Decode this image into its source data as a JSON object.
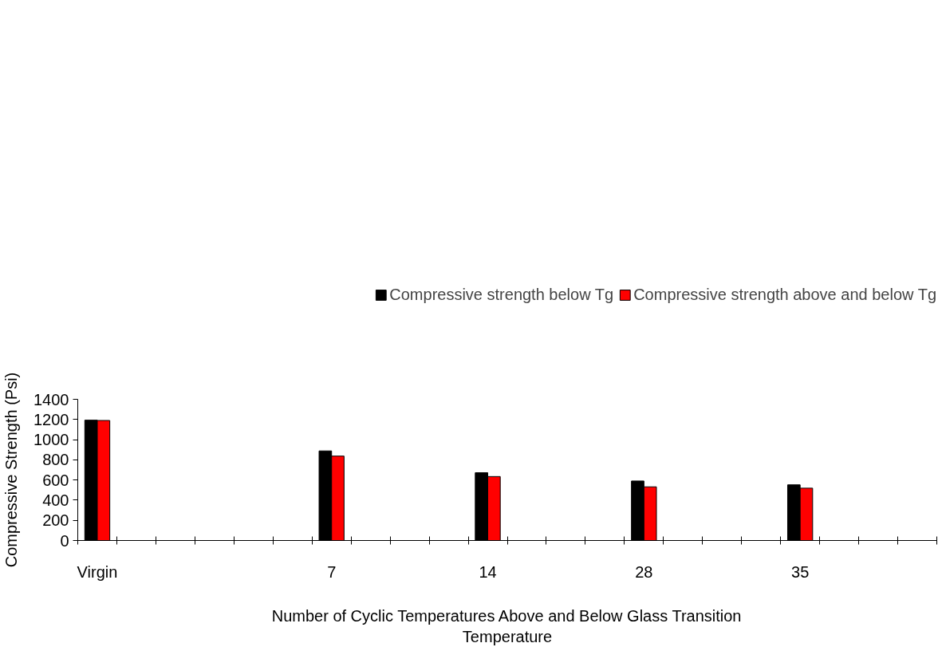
{
  "chart_data": {
    "type": "bar",
    "xlabel": "Number of Cyclic Temperatures Above and Below Glass Transition Temperature",
    "ylabel": "Compressive Strength (Psi)",
    "categories": [
      "Virgin",
      null,
      null,
      null,
      null,
      null,
      "7",
      null,
      null,
      null,
      "14",
      null,
      null,
      null,
      "28",
      null,
      null,
      null,
      "35",
      null,
      null,
      null
    ],
    "series": [
      {
        "name": "Compressive strength below Tg",
        "color": "#000000",
        "values": [
          1193,
          null,
          null,
          null,
          null,
          null,
          888,
          null,
          null,
          null,
          672,
          null,
          null,
          null,
          590,
          null,
          null,
          null,
          552,
          null,
          null,
          null
        ]
      },
      {
        "name": "Compressive strength above and below Tg",
        "color": "#ff0000",
        "values": [
          1190,
          null,
          null,
          null,
          null,
          null,
          837,
          null,
          null,
          null,
          634,
          null,
          null,
          null,
          532,
          null,
          null,
          null,
          519,
          null,
          null,
          null
        ]
      }
    ],
    "ylim": [
      0,
      1400
    ],
    "yticks": [
      0,
      200,
      400,
      600,
      800,
      1000,
      1200,
      1400
    ],
    "grid": false,
    "legend": "top right"
  }
}
